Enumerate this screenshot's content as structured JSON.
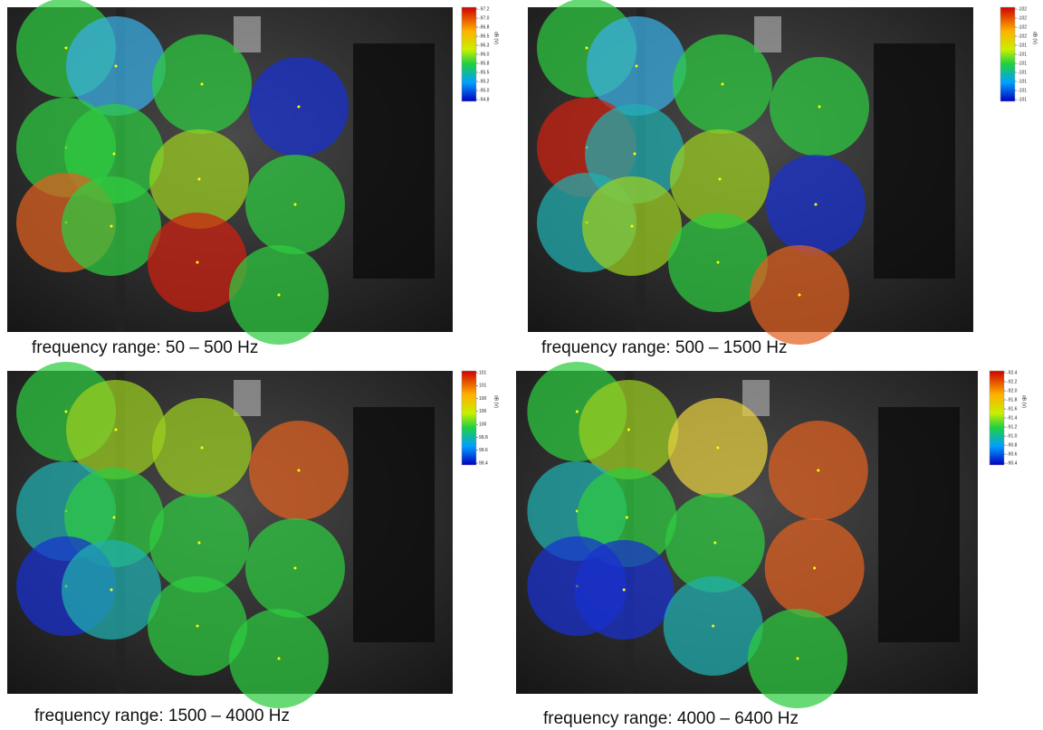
{
  "panels": [
    {
      "caption": "frequency range: 50 – 500 Hz",
      "colorbar": {
        "label": "dB (V)",
        "ticks": [
          "-97.2",
          "-97.0",
          "-96.8",
          "-96.5",
          "-96.3",
          "-96.0",
          "-95.8",
          "-95.5",
          "-95.2",
          "-95.0",
          "-94.8"
        ]
      }
    },
    {
      "caption": "frequency range: 500 – 1500 Hz",
      "colorbar": {
        "label": "dB (V)",
        "ticks": [
          "-102",
          "-102",
          "-102",
          "-102",
          "-101",
          "-101",
          "-101",
          "-101",
          "-101",
          "-101",
          "-101"
        ]
      }
    },
    {
      "caption": "frequency range: 1500 – 4000 Hz",
      "colorbar": {
        "label": "dB (V)",
        "ticks": [
          "101",
          "101",
          "100",
          "100",
          "100",
          "99.8",
          "99.6",
          "99.4"
        ]
      }
    },
    {
      "caption": "frequency range: 4000 – 6400 Hz",
      "colorbar": {
        "label": "dB (V)",
        "ticks": [
          "-92.4",
          "-92.2",
          "-92.0",
          "-91.8",
          "-91.6",
          "-91.4",
          "-91.2",
          "-91.0",
          "-90.8",
          "-90.6",
          "-90.4"
        ]
      }
    }
  ]
}
